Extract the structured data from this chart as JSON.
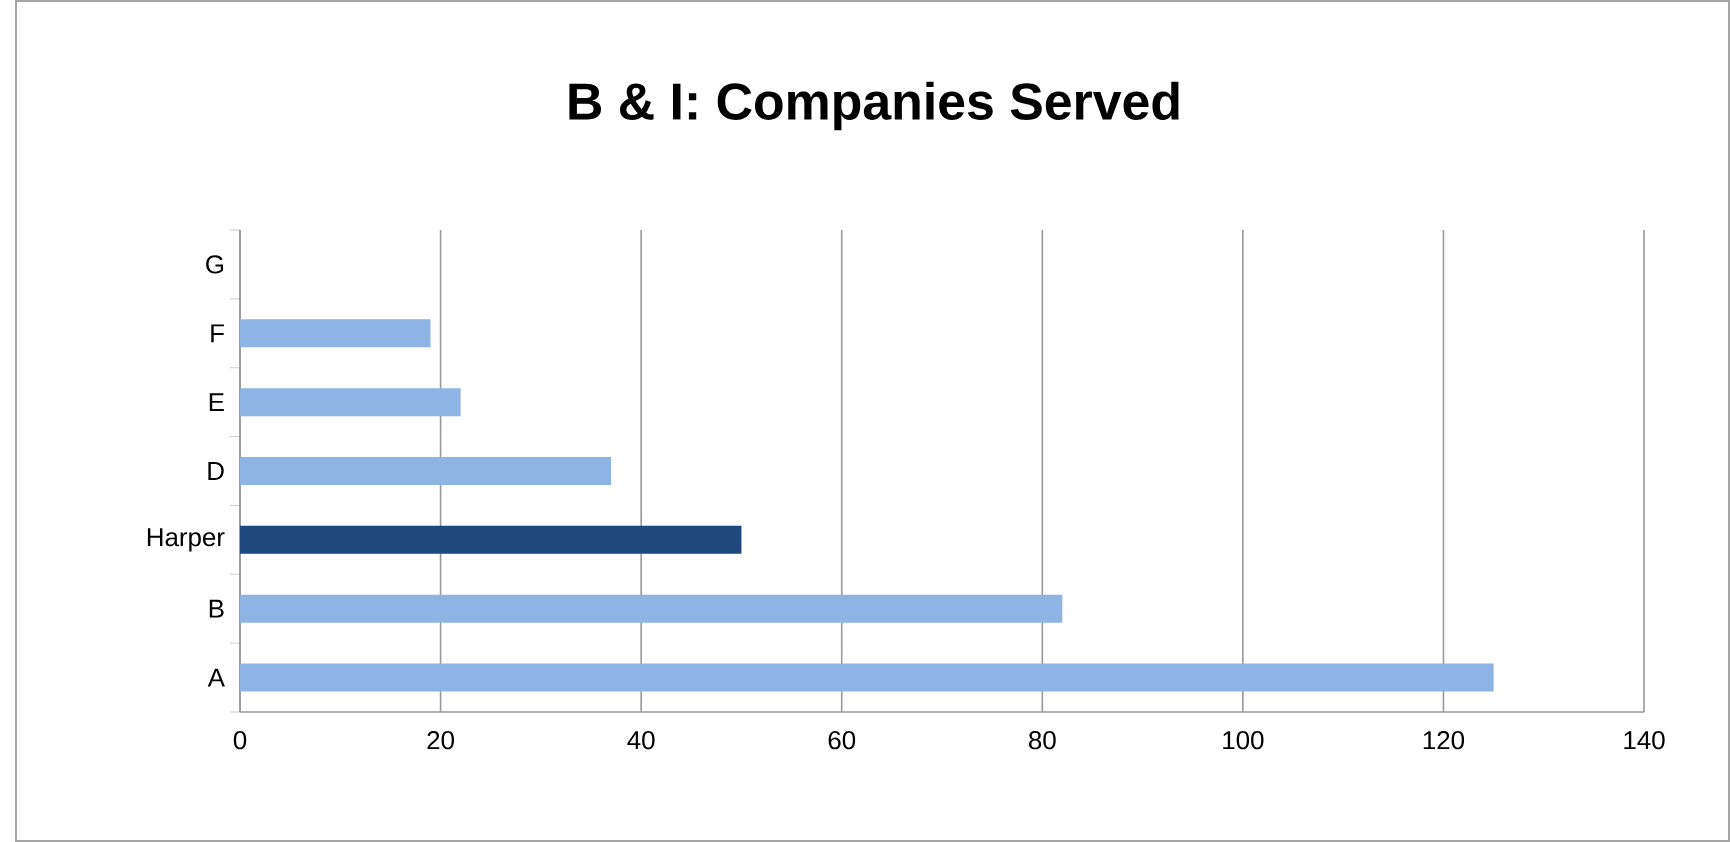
{
  "chart_data": {
    "type": "bar",
    "orientation": "horizontal",
    "title": "B & I: Companies Served",
    "categories": [
      "G",
      "F",
      "E",
      "D",
      "Harper",
      "B",
      "A"
    ],
    "values": [
      0,
      19,
      22,
      37,
      50,
      82,
      125
    ],
    "colors": [
      "#8db4e2",
      "#8db4e2",
      "#8db4e2",
      "#8db4e2",
      "#1f497d",
      "#8db4e2",
      "#8db4e2"
    ],
    "xlim": [
      0,
      140
    ],
    "xticks": [
      0,
      20,
      40,
      60,
      80,
      100,
      120,
      140
    ],
    "grid": "x"
  }
}
